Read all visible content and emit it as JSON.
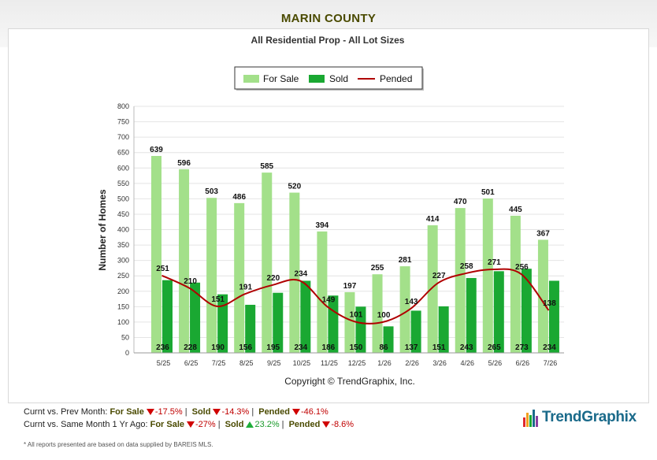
{
  "page": {
    "title": "MARIN COUNTY"
  },
  "chart_data": {
    "type": "bar",
    "title": "All Residential Prop - All Lot Sizes",
    "ylabel": "Number of Homes",
    "xlabel": "",
    "copyright": "Copyright © TrendGraphix, Inc.",
    "ylim": [
      0,
      800
    ],
    "yticks": [
      0,
      50,
      100,
      150,
      200,
      250,
      300,
      350,
      400,
      450,
      500,
      550,
      600,
      650,
      700,
      750,
      800
    ],
    "grid": true,
    "legend_position": "top-center",
    "categories": [
      "5/25",
      "6/25",
      "7/25",
      "8/25",
      "9/25",
      "10/25",
      "11/25",
      "12/25",
      "1/26",
      "2/26",
      "3/26",
      "4/26",
      "5/26",
      "6/26",
      "7/26"
    ],
    "series": [
      {
        "name": "For Sale",
        "type": "bar",
        "color": "#a3e08a",
        "values": [
          639,
          596,
          503,
          486,
          585,
          520,
          394,
          197,
          255,
          281,
          414,
          470,
          501,
          445,
          367
        ]
      },
      {
        "name": "Sold",
        "type": "bar",
        "color": "#1aa832",
        "values": [
          236,
          228,
          190,
          156,
          195,
          234,
          186,
          150,
          86,
          137,
          151,
          243,
          265,
          273,
          234
        ]
      },
      {
        "name": "Pended",
        "type": "line",
        "color": "#b00000",
        "values": [
          251,
          210,
          151,
          191,
          220,
          234,
          149,
          101,
          100,
          143,
          227,
          258,
          271,
          256,
          138
        ]
      }
    ]
  },
  "footer": {
    "prev_month": {
      "label": "Curnt vs. Prev Month:",
      "items": [
        {
          "name": "For Sale",
          "value": "-17.5%",
          "dir": "down"
        },
        {
          "name": "Sold",
          "value": "-14.3%",
          "dir": "down"
        },
        {
          "name": "Pended",
          "value": "-46.1%",
          "dir": "down"
        }
      ]
    },
    "year_ago": {
      "label": "Curnt vs. Same Month 1 Yr Ago:",
      "items": [
        {
          "name": "For Sale",
          "value": "-27%",
          "dir": "down"
        },
        {
          "name": "Sold",
          "value": "23.2%",
          "dir": "up"
        },
        {
          "name": "Pended",
          "value": "-8.6%",
          "dir": "down"
        }
      ]
    },
    "disclaimer": "* All reports presented are based on data supplied by BAREIS MLS.",
    "logo_text": "TrendGraphix"
  }
}
